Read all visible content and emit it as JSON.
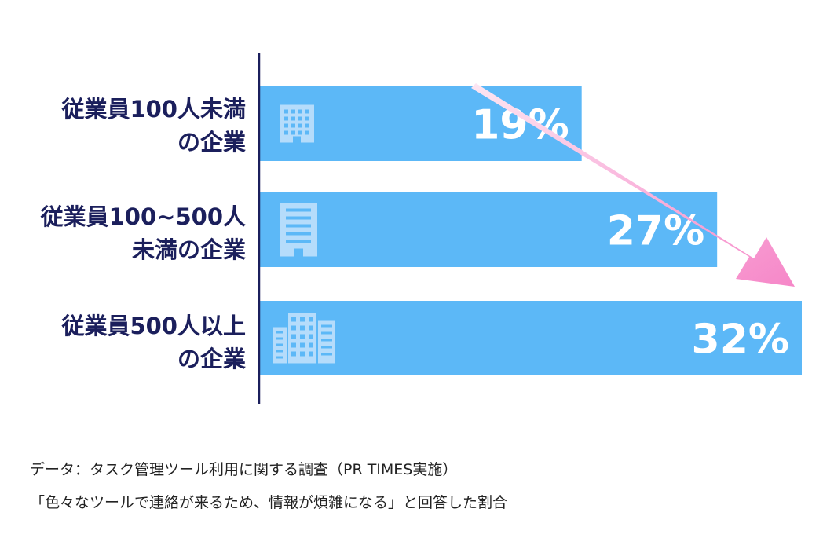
{
  "chart_data": {
    "type": "bar",
    "orientation": "horizontal",
    "categories": [
      "従業員100人未満\nの企業",
      "従業員100~500人\n未満の企業",
      "従業員500人以上\nの企業"
    ],
    "values": [
      19,
      27,
      32
    ],
    "value_labels": [
      "19%",
      "27%",
      "32%"
    ],
    "unit": "%",
    "xlim": [
      0,
      32
    ],
    "icons": [
      "small-building-icon",
      "medium-building-icon",
      "large-building-icon"
    ],
    "trend_arrow": "increasing",
    "title": "",
    "xlabel": "",
    "ylabel": "",
    "grid": false,
    "legend": "none"
  },
  "colors": {
    "bar": "#5cb8f7",
    "icon": "#b5dcfb",
    "label_text": "#1b1f5c",
    "arrow_start": "#fde6f2",
    "arrow_end": "#f687c8",
    "axis": "#1b1f5c"
  },
  "footnotes": {
    "source": "データ：タスク管理ツール利用に関する調査（PR TIMES実施）",
    "question": "「色々なツールで連絡が来るため、情報が煩雑になる」と回答した割合"
  }
}
